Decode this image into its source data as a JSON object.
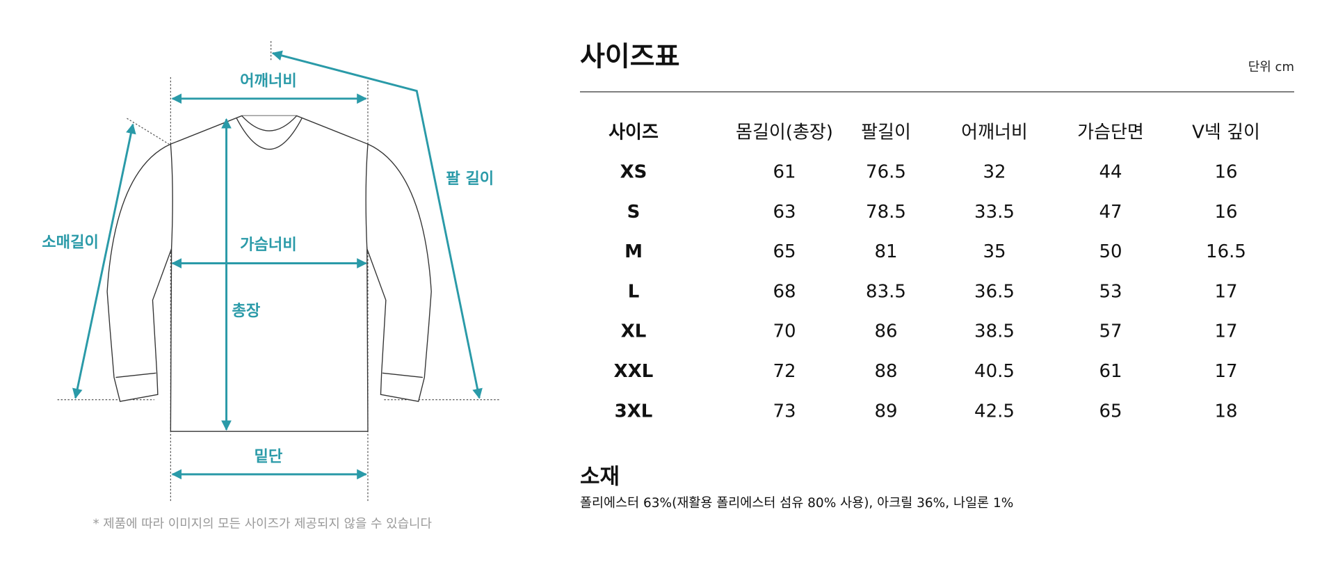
{
  "diagram": {
    "labels": {
      "shoulder": "어깨너비",
      "arm_length": "팔 길이",
      "sleeve": "소매길이",
      "chest": "가슴너비",
      "length": "총장",
      "hem": "밑단"
    },
    "note": "* 제품에 따라 이미지의 모든 사이즈가 제공되지 않을 수 있습니다"
  },
  "size_table": {
    "title": "사이즈표",
    "unit": "단위 cm",
    "headers": [
      "사이즈",
      "몸길이(총장)",
      "팔길이",
      "어깨너비",
      "가슴단면",
      "V넥 깊이"
    ],
    "rows": [
      [
        "XS",
        "61",
        "76.5",
        "32",
        "44",
        "16"
      ],
      [
        "S",
        "63",
        "78.5",
        "33.5",
        "47",
        "16"
      ],
      [
        "M",
        "65",
        "81",
        "35",
        "50",
        "16.5"
      ],
      [
        "L",
        "68",
        "83.5",
        "36.5",
        "53",
        "17"
      ],
      [
        "XL",
        "70",
        "86",
        "38.5",
        "57",
        "17"
      ],
      [
        "XXL",
        "72",
        "88",
        "40.5",
        "61",
        "17"
      ],
      [
        "3XL",
        "73",
        "89",
        "42.5",
        "65",
        "18"
      ]
    ]
  },
  "material": {
    "title": "소재",
    "text": "폴리에스터 63%(재활용 폴리에스터 섬유 80% 사용), 아크릴 36%, 나일론 1%"
  }
}
